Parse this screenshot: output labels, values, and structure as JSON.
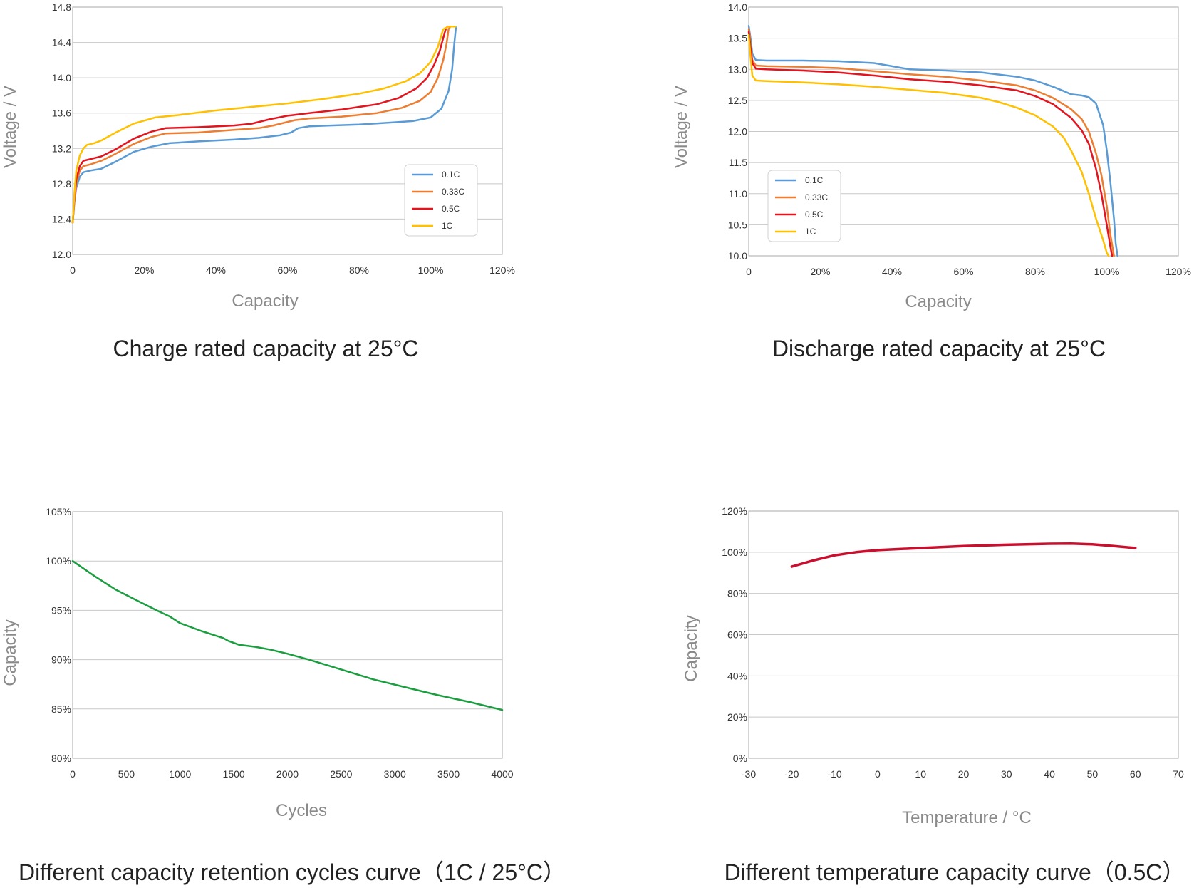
{
  "colors": {
    "c01": "#5b9bd5",
    "c033": "#ed7d31",
    "c05": "#e3141e",
    "c1": "#ffc000",
    "green": "#1a9e3f",
    "red": "#c8102e"
  },
  "chart_data": [
    {
      "type": "line",
      "title": "Charge rated capacity at 25°C",
      "xlabel": "Capacity",
      "ylabel": "Voltage / V",
      "xlim": [
        0,
        1.2
      ],
      "ylim": [
        12.0,
        14.8
      ],
      "xticks": [
        0,
        0.2,
        0.4,
        0.6,
        0.8,
        1.0,
        1.2
      ],
      "xtick_labels": [
        "0",
        "20%",
        "40%",
        "60%",
        "80%",
        "100%",
        "120%"
      ],
      "yticks": [
        12.0,
        12.4,
        12.8,
        13.2,
        13.6,
        14.0,
        14.4,
        14.8
      ],
      "ytick_labels": [
        "12.0",
        "12.4",
        "12.8",
        "13.2",
        "13.6",
        "14.0",
        "14.4",
        "14.8"
      ],
      "grid": "horizontal",
      "legend_position": "right",
      "series": [
        {
          "name": "0.1C",
          "color": "#5b9bd5",
          "x": [
            0,
            0.005,
            0.01,
            0.02,
            0.03,
            0.05,
            0.08,
            0.12,
            0.17,
            0.22,
            0.27,
            0.35,
            0.45,
            0.52,
            0.58,
            0.61,
            0.63,
            0.66,
            0.72,
            0.8,
            0.88,
            0.95,
            1.0,
            1.03,
            1.05,
            1.06,
            1.065,
            1.07,
            1.072
          ],
          "y": [
            12.36,
            12.6,
            12.75,
            12.88,
            12.93,
            12.95,
            12.97,
            13.05,
            13.16,
            13.22,
            13.26,
            13.28,
            13.3,
            13.32,
            13.35,
            13.38,
            13.43,
            13.45,
            13.46,
            13.47,
            13.49,
            13.51,
            13.55,
            13.65,
            13.85,
            14.1,
            14.35,
            14.55,
            14.58
          ]
        },
        {
          "name": "0.33C",
          "color": "#ed7d31",
          "x": [
            0,
            0.005,
            0.01,
            0.02,
            0.03,
            0.05,
            0.08,
            0.12,
            0.17,
            0.22,
            0.26,
            0.35,
            0.45,
            0.52,
            0.56,
            0.6,
            0.62,
            0.66,
            0.75,
            0.85,
            0.92,
            0.97,
            1.0,
            1.02,
            1.035,
            1.045,
            1.05,
            1.055
          ],
          "y": [
            12.36,
            12.62,
            12.8,
            12.95,
            13.0,
            13.02,
            13.06,
            13.14,
            13.25,
            13.33,
            13.37,
            13.38,
            13.41,
            13.43,
            13.46,
            13.5,
            13.52,
            13.54,
            13.56,
            13.6,
            13.66,
            13.74,
            13.84,
            14.0,
            14.2,
            14.4,
            14.55,
            14.58
          ]
        },
        {
          "name": "0.5C",
          "color": "#e3141e",
          "x": [
            0,
            0.005,
            0.01,
            0.02,
            0.03,
            0.05,
            0.08,
            0.12,
            0.17,
            0.22,
            0.26,
            0.35,
            0.45,
            0.5,
            0.55,
            0.6,
            0.62,
            0.66,
            0.75,
            0.85,
            0.91,
            0.96,
            0.99,
            1.01,
            1.025,
            1.035,
            1.042,
            1.047
          ],
          "y": [
            12.36,
            12.65,
            12.85,
            13.0,
            13.06,
            13.08,
            13.11,
            13.19,
            13.31,
            13.39,
            13.43,
            13.44,
            13.46,
            13.48,
            13.53,
            13.57,
            13.58,
            13.6,
            13.64,
            13.7,
            13.77,
            13.88,
            14.0,
            14.15,
            14.3,
            14.45,
            14.55,
            14.58
          ]
        },
        {
          "name": "1C",
          "color": "#ffc000",
          "x": [
            0,
            0.005,
            0.01,
            0.02,
            0.03,
            0.04,
            0.06,
            0.08,
            0.12,
            0.17,
            0.23,
            0.3,
            0.4,
            0.5,
            0.6,
            0.7,
            0.8,
            0.87,
            0.93,
            0.97,
            1.0,
            1.02,
            1.035,
            1.05,
            1.07
          ],
          "y": [
            12.36,
            12.7,
            12.95,
            13.12,
            13.2,
            13.24,
            13.26,
            13.29,
            13.38,
            13.48,
            13.55,
            13.58,
            13.63,
            13.67,
            13.71,
            13.76,
            13.82,
            13.88,
            13.96,
            14.05,
            14.18,
            14.35,
            14.55,
            14.58,
            14.58
          ]
        }
      ]
    },
    {
      "type": "line",
      "title": "Discharge rated capacity at 25°C",
      "xlabel": "Capacity",
      "ylabel": "Voltage / V",
      "xlim": [
        0,
        1.2
      ],
      "ylim": [
        10.0,
        14.0
      ],
      "xticks": [
        0,
        0.2,
        0.4,
        0.6,
        0.8,
        1.0,
        1.2
      ],
      "xtick_labels": [
        "0",
        "20%",
        "40%",
        "60%",
        "80%",
        "100%",
        "120%"
      ],
      "yticks": [
        10.0,
        10.5,
        11.0,
        11.5,
        12.0,
        12.5,
        13.0,
        13.5,
        14.0
      ],
      "ytick_labels": [
        "10.0",
        "10.5",
        "11.0",
        "11.5",
        "12.0",
        "12.5",
        "13.0",
        "13.5",
        "14.0"
      ],
      "grid": "horizontal",
      "legend_position": "bottom-left",
      "series": [
        {
          "name": "0.1C",
          "color": "#5b9bd5",
          "x": [
            0,
            0.005,
            0.01,
            0.02,
            0.05,
            0.15,
            0.25,
            0.35,
            0.4,
            0.45,
            0.55,
            0.65,
            0.75,
            0.8,
            0.85,
            0.88,
            0.9,
            0.93,
            0.95,
            0.97,
            0.99,
            1.0,
            1.01,
            1.02,
            1.025,
            1.03
          ],
          "y": [
            13.7,
            13.5,
            13.25,
            13.15,
            13.14,
            13.14,
            13.13,
            13.1,
            13.05,
            13.0,
            12.98,
            12.95,
            12.88,
            12.82,
            12.72,
            12.65,
            12.6,
            12.58,
            12.55,
            12.45,
            12.1,
            11.7,
            11.2,
            10.6,
            10.2,
            10.0
          ]
        },
        {
          "name": "0.33C",
          "color": "#ed7d31",
          "x": [
            0,
            0.005,
            0.01,
            0.02,
            0.05,
            0.15,
            0.25,
            0.35,
            0.45,
            0.55,
            0.65,
            0.75,
            0.8,
            0.85,
            0.9,
            0.93,
            0.95,
            0.97,
            0.985,
            1.0,
            1.01,
            1.02
          ],
          "y": [
            13.65,
            13.4,
            13.15,
            13.06,
            13.05,
            13.04,
            13.02,
            12.97,
            12.92,
            12.88,
            12.82,
            12.74,
            12.66,
            12.54,
            12.36,
            12.2,
            12.0,
            11.65,
            11.3,
            10.8,
            10.35,
            10.0
          ]
        },
        {
          "name": "0.5C",
          "color": "#e3141e",
          "x": [
            0,
            0.005,
            0.01,
            0.02,
            0.05,
            0.15,
            0.25,
            0.35,
            0.45,
            0.55,
            0.65,
            0.75,
            0.8,
            0.85,
            0.9,
            0.93,
            0.95,
            0.97,
            0.985,
            1.0,
            1.01,
            1.015
          ],
          "y": [
            13.6,
            13.35,
            13.1,
            13.01,
            13.0,
            12.98,
            12.95,
            12.9,
            12.84,
            12.8,
            12.74,
            12.66,
            12.57,
            12.44,
            12.22,
            12.02,
            11.8,
            11.4,
            11.0,
            10.5,
            10.15,
            10.0
          ]
        },
        {
          "name": "1C",
          "color": "#ffc000",
          "x": [
            0,
            0.005,
            0.01,
            0.02,
            0.05,
            0.15,
            0.25,
            0.35,
            0.45,
            0.55,
            0.65,
            0.7,
            0.75,
            0.8,
            0.85,
            0.88,
            0.9,
            0.93,
            0.95,
            0.97,
            0.99,
            1.0,
            1.005
          ],
          "y": [
            13.55,
            13.2,
            12.9,
            12.82,
            12.81,
            12.79,
            12.76,
            12.72,
            12.67,
            12.62,
            12.54,
            12.47,
            12.38,
            12.26,
            12.08,
            11.9,
            11.7,
            11.35,
            11.0,
            10.6,
            10.25,
            10.05,
            10.0
          ]
        }
      ]
    },
    {
      "type": "line",
      "title": "Different capacity retention cycles curve（1C / 25°C）",
      "xlabel": "Cycles",
      "ylabel": "Capacity",
      "xlim": [
        0,
        4000
      ],
      "ylim": [
        80,
        105
      ],
      "xticks": [
        0,
        500,
        1000,
        1500,
        2000,
        2500,
        3000,
        3500,
        4000
      ],
      "xtick_labels": [
        "0",
        "500",
        "1000",
        "1500",
        "2000",
        "2500",
        "3000",
        "3500",
        "4000"
      ],
      "yticks": [
        80,
        85,
        90,
        95,
        100,
        105
      ],
      "ytick_labels": [
        "80%",
        "85%",
        "90%",
        "95%",
        "100%",
        "105%"
      ],
      "grid": "horizontal",
      "legend_position": "none",
      "series": [
        {
          "name": "",
          "color": "#1a9e3f",
          "x": [
            0,
            200,
            400,
            600,
            800,
            900,
            1000,
            1200,
            1400,
            1450,
            1550,
            1700,
            1850,
            2000,
            2200,
            2500,
            2800,
            3100,
            3400,
            3700,
            4000
          ],
          "y": [
            100,
            98.5,
            97.1,
            96.0,
            94.9,
            94.4,
            93.7,
            92.9,
            92.2,
            91.9,
            91.5,
            91.3,
            91.0,
            90.6,
            90.0,
            89.0,
            88.0,
            87.2,
            86.4,
            85.7,
            84.9
          ]
        }
      ]
    },
    {
      "type": "line",
      "title": "Different temperature capacity curve（0.5C）",
      "xlabel": "Temperature / °C",
      "ylabel": "Capacity",
      "xlim": [
        -30,
        70
      ],
      "ylim": [
        0,
        120
      ],
      "xticks": [
        -30,
        -20,
        -10,
        0,
        10,
        20,
        30,
        40,
        50,
        60,
        70
      ],
      "xtick_labels": [
        "-30",
        "-20",
        "-10",
        "0",
        "10",
        "20",
        "30",
        "40",
        "50",
        "60",
        "70"
      ],
      "yticks": [
        0,
        20,
        40,
        60,
        80,
        100,
        120
      ],
      "ytick_labels": [
        "0%",
        "20%",
        "40%",
        "60%",
        "80%",
        "100%",
        "120%"
      ],
      "grid": "horizontal",
      "legend_position": "none",
      "series": [
        {
          "name": "",
          "color": "#c8102e",
          "x": [
            -20,
            -15,
            -10,
            -5,
            0,
            10,
            20,
            30,
            40,
            45,
            50,
            55,
            60
          ],
          "y": [
            93,
            96,
            98.5,
            100,
            101,
            102,
            103,
            103.6,
            104.1,
            104.2,
            103.8,
            103.0,
            102
          ]
        }
      ]
    }
  ]
}
